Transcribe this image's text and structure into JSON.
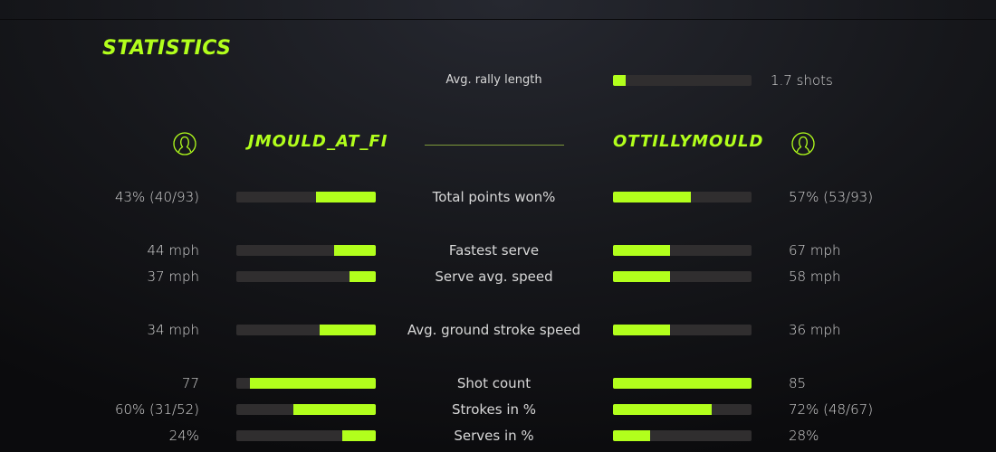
{
  "title": "STATISTICS",
  "accent": "#b2ff1c",
  "track": "#302e2f",
  "rally": {
    "label": "Avg. rally length",
    "value": "1.7 shots",
    "fill": 0.09
  },
  "players": {
    "left": {
      "name": "JMOULD_AT_FI",
      "icon": "user-circle-icon"
    },
    "right": {
      "name": "OTTILLYMOULD",
      "icon": "user-circle-icon"
    }
  },
  "stats": [
    {
      "label": "Total points won%",
      "left": "43% (40/93)",
      "right": "57% (53/93)",
      "left_fill": 0.43,
      "right_fill": 0.56
    },
    {
      "label": "Fastest serve",
      "left": "44 mph",
      "right": "67 mph",
      "left_fill": 0.3,
      "right_fill": 0.41
    },
    {
      "label": "Serve avg. speed",
      "left": "37 mph",
      "right": "58 mph",
      "left_fill": 0.19,
      "right_fill": 0.41
    },
    {
      "label": "Avg. ground stroke speed",
      "left": "34 mph",
      "right": "36 mph",
      "left_fill": 0.4,
      "right_fill": 0.41
    },
    {
      "label": "Shot count",
      "left": "77",
      "right": "85",
      "left_fill": 0.9,
      "right_fill": 1.0
    },
    {
      "label": "Strokes in %",
      "left": "60% (31/52)",
      "right": "72% (48/67)",
      "left_fill": 0.59,
      "right_fill": 0.71
    },
    {
      "label": "Serves in %",
      "left": "24%",
      "right": "28%",
      "left_fill": 0.24,
      "right_fill": 0.27
    }
  ]
}
